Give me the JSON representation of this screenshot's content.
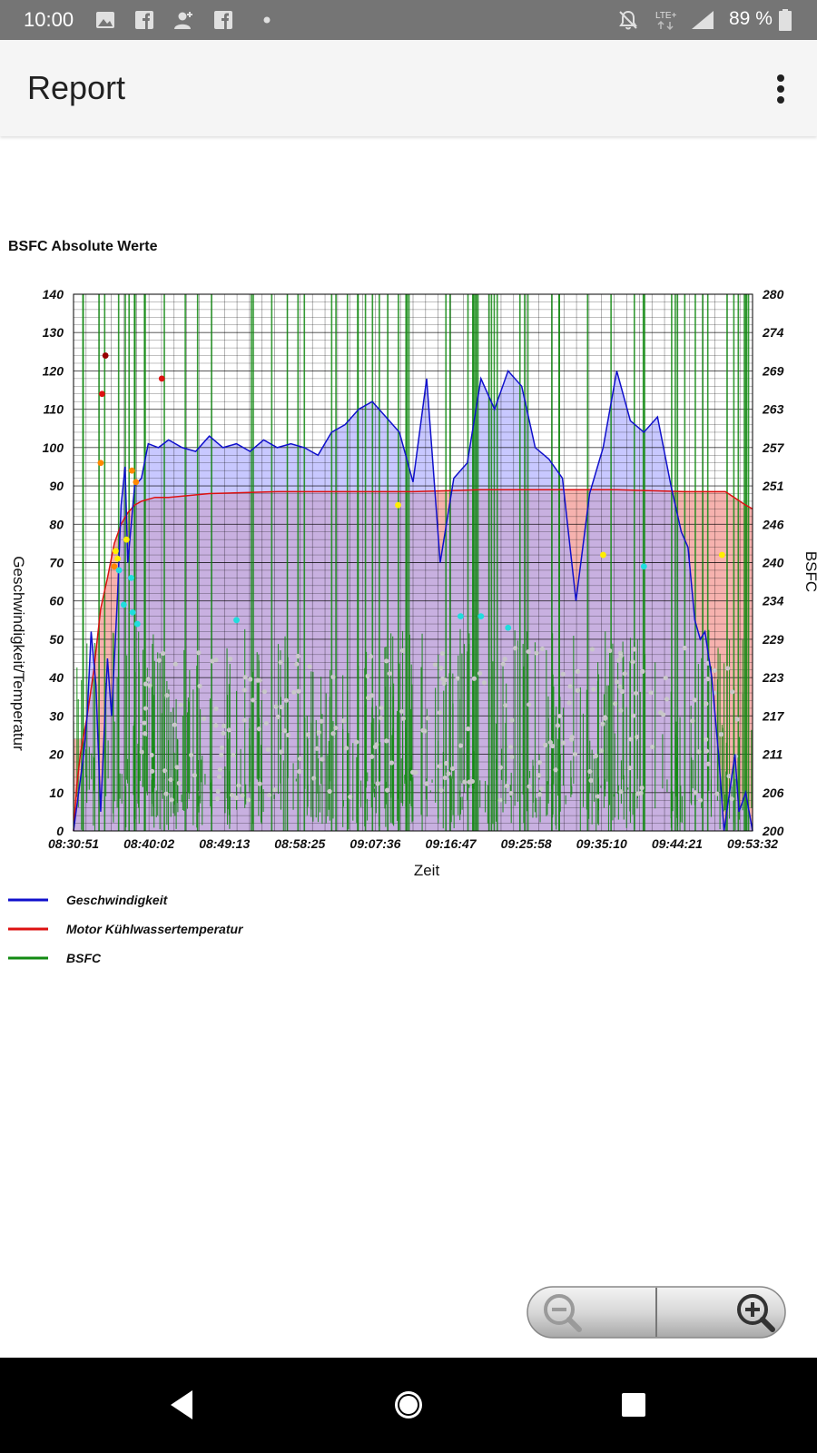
{
  "status_bar": {
    "time": "10:00",
    "left_icons": [
      "image-icon",
      "facebook-icon",
      "add-person-icon",
      "facebook-icon",
      "dot-icon"
    ],
    "network": "LTE+",
    "battery": "89 %"
  },
  "app_bar": {
    "title": "Report",
    "overflow_icon": "more-vert-icon"
  },
  "chart_data": {
    "type": "line",
    "title": "BSFC Absolute Werte",
    "xlabel": "Zeit",
    "ylabel": "Geschwindigkeit/Temperatur",
    "ylabel_right": "BSFC",
    "x_ticks": [
      "08:30:51",
      "08:40:02",
      "08:49:13",
      "08:58:25",
      "09:07:36",
      "09:16:47",
      "09:25:58",
      "09:35:10",
      "09:44:21",
      "09:53:32"
    ],
    "y_ticks_left": [
      "0",
      "10",
      "20",
      "30",
      "40",
      "50",
      "60",
      "70",
      "80",
      "90",
      "100",
      "110",
      "120",
      "130",
      "140"
    ],
    "y_ticks_right": [
      "200",
      "206",
      "211",
      "217",
      "223",
      "229",
      "234",
      "240",
      "246",
      "251",
      "257",
      "263",
      "269",
      "274",
      "280"
    ],
    "ylim_left": [
      0,
      140
    ],
    "ylim_right": [
      200,
      280
    ],
    "grid": true,
    "legend_position": "bottom",
    "series": [
      {
        "name": "Geschwindigkeit",
        "color": "#1010cc",
        "fill": "#c8c8ff",
        "x": [
          0,
          1.5,
          2,
          2.6,
          3.3,
          4,
          5,
          5.6,
          6.5,
          7,
          7.6,
          8,
          9,
          10,
          11,
          12.5,
          14,
          16,
          18,
          20,
          22,
          24,
          26,
          28,
          30,
          32,
          34,
          36,
          38,
          40,
          42,
          44,
          46,
          48,
          50,
          52,
          54,
          56,
          58,
          60,
          62,
          64,
          66,
          68,
          70,
          72,
          74,
          76,
          78,
          80,
          82,
          84,
          86,
          88,
          89.5,
          90.5,
          91.5,
          92.3,
          93,
          94,
          95,
          95.8,
          96.6,
          97.4,
          98,
          99,
          100
        ],
        "y": [
          0,
          20,
          30,
          52,
          38,
          5,
          45,
          30,
          62,
          85,
          95,
          70,
          90,
          92,
          101,
          100,
          102,
          100,
          99,
          103,
          100,
          101,
          99,
          102,
          100,
          101,
          100,
          98,
          104,
          106,
          110,
          112,
          108,
          104,
          91,
          118,
          70,
          92,
          96,
          118,
          110,
          120,
          116,
          100,
          97,
          92,
          60,
          88,
          100,
          120,
          107,
          104,
          108,
          90,
          78,
          74,
          55,
          50,
          52,
          40,
          20,
          0,
          10,
          20,
          5,
          10,
          0
        ]
      },
      {
        "name": "Motor Kühlwassertemperatur",
        "color": "#dd1111",
        "fill": "#f6b2ae",
        "x": [
          0,
          0.5,
          1,
          2,
          3,
          4,
          5,
          6,
          7,
          8,
          9,
          10,
          11,
          12,
          14,
          20,
          30,
          40,
          50,
          60,
          70,
          80,
          90,
          96,
          99,
          100
        ],
        "y": [
          0,
          12,
          20,
          30,
          42,
          58,
          66,
          75,
          80,
          83,
          85,
          86,
          86.5,
          87,
          87,
          88,
          88.5,
          88.5,
          88.5,
          89,
          89,
          89,
          88.5,
          88.5,
          85,
          84
        ]
      },
      {
        "name": "BSFC",
        "color": "#128a12",
        "fill": "#c8b0e0",
        "baseline": 24,
        "x": [
          0,
          100
        ],
        "y": [
          24,
          24
        ]
      }
    ],
    "tracked_points": {
      "dark_red": {
        "color": "#990000",
        "x": [
          4.7
        ],
        "y": [
          124
        ]
      },
      "red": {
        "color": "#dd1111",
        "x": [
          4.2,
          13
        ],
        "y": [
          114,
          118
        ]
      },
      "orange": {
        "color": "#ff8800",
        "x": [
          4,
          6,
          8.6,
          9.2
        ],
        "y": [
          96,
          69,
          94,
          91
        ]
      },
      "yellow": {
        "color": "#ffee00",
        "x": [
          6.2,
          6.5,
          7.8,
          47.8,
          78,
          95.5
        ],
        "y": [
          73,
          71,
          76,
          85,
          72,
          72
        ]
      },
      "cyan": {
        "color": "#20dddd",
        "x": [
          6.7,
          7.4,
          8.5,
          8.7,
          9.4,
          24,
          57,
          60,
          64,
          84
        ],
        "y": [
          68,
          59,
          66,
          57,
          54,
          55,
          56,
          56,
          53,
          69
        ]
      }
    }
  },
  "zoom_controls": {
    "zoom_out_icon": "zoom-out-icon",
    "zoom_in_icon": "zoom-in-icon"
  },
  "nav_bar": {
    "buttons": [
      "back-icon",
      "home-icon",
      "recents-icon"
    ]
  }
}
